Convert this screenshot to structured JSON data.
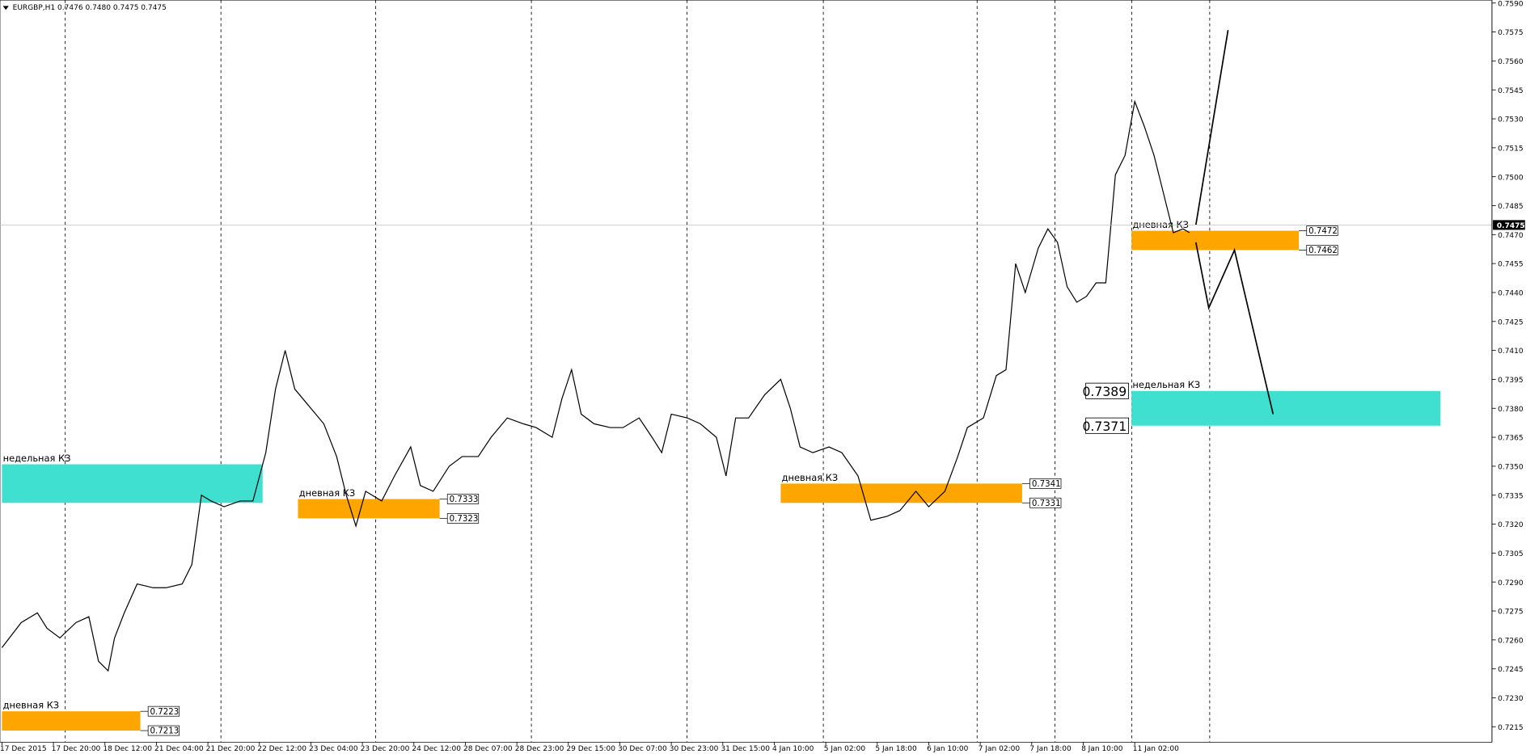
{
  "chart_data": {
    "type": "line",
    "title": "EURGBP,H1  0.7476 0.7480 0.7475 0.7475",
    "color": "#000000",
    "x": [
      0,
      6,
      11,
      14,
      18,
      23,
      27,
      30,
      33,
      35,
      38,
      42,
      47,
      51,
      56,
      59,
      62,
      65,
      69,
      74,
      78,
      82,
      85,
      88,
      91,
      95,
      100,
      104,
      107,
      110,
      113,
      118,
      122,
      127,
      130,
      134,
      139,
      143,
      148,
      152,
      157,
      162,
      166,
      171,
      174,
      177,
      180,
      184,
      189,
      193,
      198,
      202,
      205,
      208,
      213,
      217,
      222,
      225,
      228,
      232,
      237,
      242,
      245,
      248,
      252,
      257,
      261,
      266,
      270,
      275,
      279,
      284,
      288,
      293,
      297,
      300,
      305,
      309,
      312,
      315,
      318,
      322,
      325,
      328,
      331,
      334,
      337,
      340,
      343,
      346,
      349,
      352,
      355,
      358,
      361,
      364,
      367,
      369
    ],
    "values": [
      0.7256,
      0.7269,
      0.7274,
      0.7266,
      0.7261,
      0.7269,
      0.7272,
      0.7249,
      0.7244,
      0.7261,
      0.7274,
      0.7289,
      0.7287,
      0.7287,
      0.7289,
      0.7299,
      0.7335,
      0.7332,
      0.7329,
      0.7332,
      0.7332,
      0.7357,
      0.739,
      0.741,
      0.739,
      0.7382,
      0.7372,
      0.7355,
      0.7335,
      0.7319,
      0.7337,
      0.7332,
      0.7345,
      0.736,
      0.734,
      0.7337,
      0.735,
      0.7355,
      0.7355,
      0.7365,
      0.7375,
      0.7372,
      0.737,
      0.7365,
      0.7385,
      0.74,
      0.7377,
      0.7372,
      0.737,
      0.737,
      0.7375,
      0.7365,
      0.7357,
      0.7377,
      0.7375,
      0.7372,
      0.7365,
      0.7345,
      0.7375,
      0.7375,
      0.7387,
      0.7395,
      0.738,
      0.736,
      0.7357,
      0.736,
      0.7357,
      0.7345,
      0.7322,
      0.7324,
      0.7327,
      0.7337,
      0.7329,
      0.7337,
      0.7355,
      0.737,
      0.7375,
      0.7397,
      0.74,
      0.7455,
      0.744,
      0.7463,
      0.7473,
      0.7466,
      0.7443,
      0.7435,
      0.7438,
      0.7445,
      0.7445,
      0.7501,
      0.7511,
      0.7539,
      0.7526,
      0.7511,
      0.7491,
      0.7471,
      0.7473,
      0.7471
    ],
    "xlim": [
      0,
      463
    ],
    "xticks": [
      {
        "value": 0,
        "label": "17 Dec 2015"
      },
      {
        "value": 16,
        "label": "17 Dec 20:00"
      },
      {
        "value": 32,
        "label": "18 Dec 12:00"
      },
      {
        "value": 48,
        "label": "21 Dec 04:00"
      },
      {
        "value": 64,
        "label": "21 Dec 20:00"
      },
      {
        "value": 80,
        "label": "22 Dec 12:00"
      },
      {
        "value": 96,
        "label": "23 Dec 04:00"
      },
      {
        "value": 112,
        "label": "23 Dec 20:00"
      },
      {
        "value": 128,
        "label": "24 Dec 12:00"
      },
      {
        "value": 144,
        "label": "28 Dec 07:00"
      },
      {
        "value": 160,
        "label": "28 Dec 23:00"
      },
      {
        "value": 176,
        "label": "29 Dec 15:00"
      },
      {
        "value": 192,
        "label": "30 Dec 07:00"
      },
      {
        "value": 208,
        "label": "30 Dec 23:00"
      },
      {
        "value": 224,
        "label": "31 Dec 15:00"
      },
      {
        "value": 240,
        "label": "4 Jan 10:00"
      },
      {
        "value": 256,
        "label": "5 Jan 02:00"
      },
      {
        "value": 272,
        "label": "5 Jan 18:00"
      },
      {
        "value": 288,
        "label": "6 Jan 10:00"
      },
      {
        "value": 304,
        "label": "7 Jan 02:00"
      },
      {
        "value": 320,
        "label": "7 Jan 18:00"
      },
      {
        "value": 336,
        "label": "8 Jan 10:00"
      },
      {
        "value": 352,
        "label": "11 Jan 02:00"
      }
    ],
    "ylim": [
      0.7207,
      0.75915
    ],
    "yticks": [
      {
        "value": 0.759,
        "label": "0.7590"
      },
      0.7575,
      {
        "value": 0.756,
        "label": "0.7560"
      },
      0.7545,
      {
        "value": 0.753,
        "label": "0.7530"
      },
      0.7515,
      {
        "value": 0.75,
        "label": "0.7500"
      },
      0.7485,
      {
        "value": 0.747,
        "label": "0.7470"
      },
      0.7455,
      {
        "value": 0.744,
        "label": "0.7440"
      },
      0.7425,
      {
        "value": 0.741,
        "label": "0.7410"
      },
      0.7395,
      {
        "value": 0.738,
        "label": "0.7380"
      },
      0.7365,
      {
        "value": 0.735,
        "label": "0.7350"
      },
      0.7335,
      {
        "value": 0.732,
        "label": "0.7320"
      },
      0.7305,
      {
        "value": 0.729,
        "label": "0.7290"
      },
      0.7275,
      {
        "value": 0.726,
        "label": "0.7260"
      },
      0.7245,
      {
        "value": 0.723,
        "label": "0.7230"
      },
      0.7215
    ],
    "last_price": 0.7475,
    "zones": [
      {
        "label": "недельная КЗ",
        "color": "#40e0d0",
        "x": [
          0,
          81
        ],
        "top": 0.7351,
        "bottom": 0.7331
      },
      {
        "label": "дневная КЗ",
        "color": "#ffa500",
        "x": [
          92,
          136
        ],
        "top": 0.7333,
        "bottom": 0.7323,
        "price_side": "right"
      },
      {
        "label": "дневная КЗ",
        "color": "#ffa500",
        "x": [
          242,
          317
        ],
        "top": 0.7341,
        "bottom": 0.7331,
        "price_side": "right"
      },
      {
        "label": "дневная КЗ",
        "color": "#ffa500",
        "x": [
          351,
          403
        ],
        "top": 0.7472,
        "bottom": 0.7462,
        "price_side": "right"
      },
      {
        "label": "недельная КЗ",
        "color": "#40e0d0",
        "x": [
          351,
          447
        ],
        "top": 0.7389,
        "bottom": 0.7371,
        "price_side": "left"
      },
      {
        "label": "дневная КЗ",
        "color": "#ffa500",
        "x": [
          0,
          43
        ],
        "top": 0.7223,
        "bottom": 0.7213,
        "price_side": "right"
      }
    ],
    "drawings": [
      {
        "x": [
          371,
          381
        ],
        "y": [
          0.7475,
          0.7576
        ]
      },
      {
        "x": [
          371,
          375,
          383,
          395
        ],
        "y": [
          0.7466,
          0.7432,
          0.7462,
          0.7377
        ]
      }
    ]
  }
}
